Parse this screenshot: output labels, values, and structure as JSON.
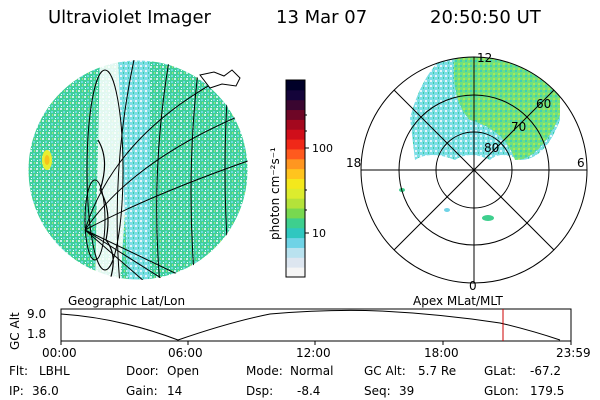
{
  "header": {
    "title": "Ultraviolet Imager",
    "date": "13 Mar 07",
    "time": "20:50:50 UT"
  },
  "left_panel": {
    "label": "Geographic Lat/Lon"
  },
  "right_panel": {
    "label": "Apex  MLat/MLT",
    "mlt_labels": [
      "12",
      "18",
      "6",
      "0"
    ],
    "mlat_labels": [
      "60",
      "70",
      "80"
    ]
  },
  "colorbar": {
    "unit_label": "photon cm⁻²s⁻¹",
    "ticks": [
      "100",
      "10"
    ],
    "colors": [
      "#f5f5f5",
      "#dde6f0",
      "#b9e2ef",
      "#6fd3e6",
      "#2fc7c0",
      "#3ecf8e",
      "#78d850",
      "#b4e23a",
      "#dcec2e",
      "#f4e81c",
      "#ffc41e",
      "#ff9620",
      "#ff5a1e",
      "#f02818",
      "#d00e1a",
      "#a4081e",
      "#6e0626",
      "#3a0630",
      "#14043a",
      "#000028"
    ]
  },
  "orbit_plot": {
    "ylabel": "GC Alt",
    "y_ticks": [
      "9.0",
      "1.8"
    ],
    "x_ticks": [
      "00:00",
      "06:00",
      "12:00",
      "18:00",
      "23:59"
    ],
    "marker_time": "20:50",
    "altitude_max": 9.0,
    "altitude_min": 1.8
  },
  "info": {
    "flt_label": "Flt:",
    "flt_value": "LBHL",
    "ip_label": "IP:",
    "ip_value": "36.0",
    "door_label": "Door:",
    "door_value": "Open",
    "gain_label": "Gain:",
    "gain_value": "14",
    "mode_label": "Mode:",
    "mode_value": "Normal",
    "dsp_label": "Dsp:",
    "dsp_value": "-8.4",
    "gcalt_label": "GC Alt:",
    "gcalt_value": "5.7 Re",
    "seq_label": "Seq:",
    "seq_value": "39",
    "glat_label": "GLat:",
    "glat_value": "-67.2",
    "glon_label": "GLon:",
    "glon_value": "179.5"
  }
}
